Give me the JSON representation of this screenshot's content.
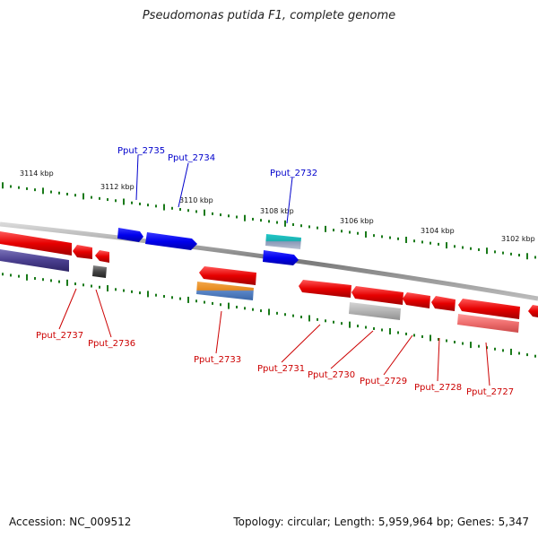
{
  "title": "Pseudomonas putida F1, complete genome",
  "footer": {
    "accession": "Accession: NC_009512",
    "stats": "Topology: circular; Length: 5,959,964 bp; Genes: 5,347"
  },
  "colors": {
    "forward_gene": "#0000ee",
    "reverse_gene": "#ee0000",
    "forward_label": "#0000cc",
    "reverse_label": "#cc0000",
    "backbone": "#8a8a8a",
    "tick": "#1a7a1a"
  },
  "scale_labels": [
    "3114 kbp",
    "3112 kbp",
    "3110 kbp",
    "3108 kbp",
    "3106 kbp",
    "3104 kbp",
    "3102 kbp"
  ],
  "forward_labels": [
    "Pput_2735",
    "Pput_2734",
    "Pput_2732"
  ],
  "reverse_labels": [
    "Pput_2737",
    "Pput_2736",
    "Pput_2733",
    "Pput_2731",
    "Pput_2730",
    "Pput_2729",
    "Pput_2728",
    "Pput_2727"
  ]
}
